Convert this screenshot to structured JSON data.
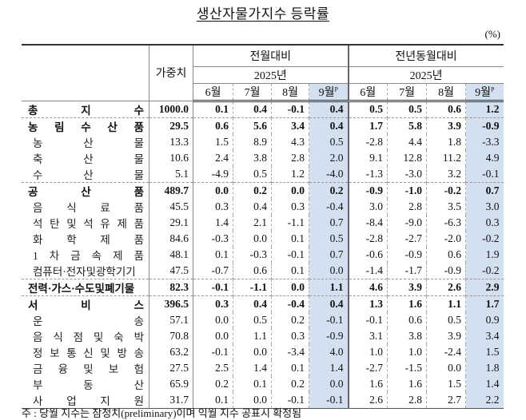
{
  "title": "생산자물가지수 등락률",
  "unit": "(%)",
  "header": {
    "weight": "가중치",
    "group1": "전월대비",
    "group2": "전년동월대비",
    "year": "2025년",
    "months": [
      "6월",
      "7월",
      "8월",
      "9월"
    ],
    "prelim_mark": "P"
  },
  "highlight_color": "#d3e0ef",
  "rows": [
    {
      "label": "총지수",
      "level": "major",
      "weight": "1000.0",
      "mom": [
        "0.1",
        "0.4",
        "-0.1",
        "0.4"
      ],
      "yoy": [
        "0.5",
        "0.5",
        "0.6",
        "1.2"
      ]
    },
    {
      "label": "농림수산품",
      "level": "major",
      "weight": "29.5",
      "mom": [
        "0.6",
        "5.6",
        "3.4",
        "0.4"
      ],
      "yoy": [
        "1.7",
        "5.8",
        "3.9",
        "-0.9"
      ]
    },
    {
      "label": "농산물",
      "level": "sub",
      "weight": "13.3",
      "mom": [
        "1.5",
        "8.9",
        "4.3",
        "0.5"
      ],
      "yoy": [
        "-2.8",
        "4.4",
        "1.8",
        "-3.3"
      ]
    },
    {
      "label": "축산물",
      "level": "sub",
      "weight": "10.6",
      "mom": [
        "2.4",
        "3.8",
        "2.8",
        "2.0"
      ],
      "yoy": [
        "9.1",
        "12.8",
        "11.2",
        "4.9"
      ]
    },
    {
      "label": "수산물",
      "level": "sub",
      "weight": "5.1",
      "mom": [
        "-4.9",
        "0.5",
        "1.2",
        "-4.0"
      ],
      "yoy": [
        "-1.3",
        "-3.0",
        "3.2",
        "-0.1"
      ]
    },
    {
      "label": "공산품",
      "level": "major",
      "weight": "489.7",
      "mom": [
        "0.0",
        "0.2",
        "0.0",
        "0.2"
      ],
      "yoy": [
        "-0.9",
        "-1.0",
        "-0.2",
        "0.7"
      ]
    },
    {
      "label": "음식료품",
      "level": "sub",
      "weight": "45.5",
      "mom": [
        "0.3",
        "0.4",
        "0.3",
        "-0.4"
      ],
      "yoy": [
        "3.0",
        "2.8",
        "3.5",
        "3.0"
      ]
    },
    {
      "label": "석탄및석유제품",
      "level": "sub",
      "weight": "29.1",
      "mom": [
        "1.4",
        "2.1",
        "-1.1",
        "0.7"
      ],
      "yoy": [
        "-8.4",
        "-9.0",
        "-6.3",
        "0.3"
      ]
    },
    {
      "label": "화학제품",
      "level": "sub",
      "weight": "84.6",
      "mom": [
        "-0.3",
        "0.0",
        "0.1",
        "0.5"
      ],
      "yoy": [
        "-2.8",
        "-2.7",
        "-2.0",
        "-0.2"
      ]
    },
    {
      "label": "1차금속제품",
      "level": "sub",
      "weight": "48.1",
      "mom": [
        "0.1",
        "-0.3",
        "-0.1",
        "0.7"
      ],
      "yoy": [
        "-0.6",
        "-0.9",
        "0.6",
        "1.9"
      ]
    },
    {
      "label": "컴퓨터·전자및광학기기",
      "level": "sub",
      "nospread": true,
      "weight": "47.5",
      "mom": [
        "-0.7",
        "0.6",
        "0.1",
        "0.0"
      ],
      "yoy": [
        "-1.4",
        "-1.7",
        "-0.9",
        "-0.2"
      ]
    },
    {
      "label": "전력·가스·수도및폐기물",
      "level": "major",
      "nospread": true,
      "weight": "82.3",
      "mom": [
        "-0.1",
        "-1.1",
        "0.0",
        "1.1"
      ],
      "yoy": [
        "4.6",
        "3.9",
        "2.6",
        "2.9"
      ]
    },
    {
      "label": "서비스",
      "level": "major",
      "weight": "396.5",
      "mom": [
        "0.3",
        "0.4",
        "-0.4",
        "0.4"
      ],
      "yoy": [
        "1.3",
        "1.6",
        "1.1",
        "1.7"
      ]
    },
    {
      "label": "운송",
      "level": "sub",
      "weight": "57.1",
      "mom": [
        "0.0",
        "0.5",
        "0.2",
        "-0.1"
      ],
      "yoy": [
        "-0.1",
        "0.6",
        "0.5",
        "0.9"
      ]
    },
    {
      "label": "음식점및숙박",
      "level": "sub",
      "weight": "70.8",
      "mom": [
        "0.0",
        "1.1",
        "0.3",
        "-0.9"
      ],
      "yoy": [
        "3.1",
        "3.8",
        "3.9",
        "3.4"
      ]
    },
    {
      "label": "정보통신및방송",
      "level": "sub",
      "weight": "63.2",
      "mom": [
        "-0.1",
        "0.0",
        "-3.4",
        "4.0"
      ],
      "yoy": [
        "1.0",
        "1.0",
        "-2.4",
        "1.5"
      ]
    },
    {
      "label": "금융및보험",
      "level": "sub",
      "weight": "27.5",
      "mom": [
        "2.5",
        "1.4",
        "0.1",
        "1.4"
      ],
      "yoy": [
        "-2.7",
        "-1.5",
        "0.0",
        "1.8"
      ]
    },
    {
      "label": "부동산",
      "level": "sub",
      "weight": "65.9",
      "mom": [
        "0.2",
        "0.1",
        "0.2",
        "0.0"
      ],
      "yoy": [
        "1.6",
        "1.6",
        "1.5",
        "1.4"
      ]
    },
    {
      "label": "사업지원",
      "level": "sub",
      "weight": "31.7",
      "mom": [
        "0.1",
        "0.0",
        "-0.1",
        "-0.1"
      ],
      "yoy": [
        "2.6",
        "2.8",
        "2.7",
        "2.2"
      ]
    }
  ],
  "note": "주 : 당월 지수는 잠정치(preliminary)이며 익월 지수 공표시 확정됨"
}
